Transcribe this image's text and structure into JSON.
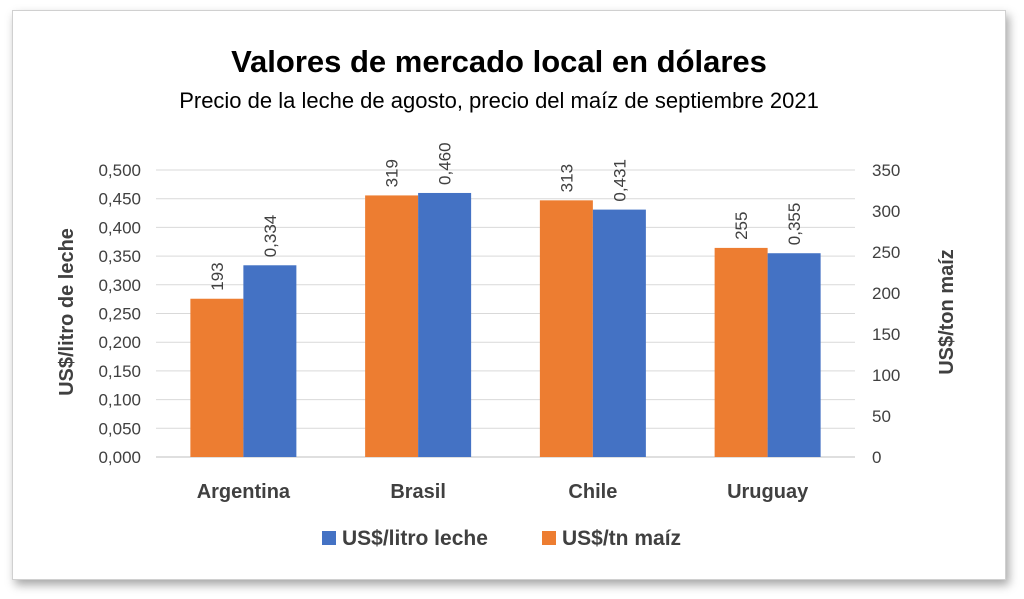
{
  "chart_data": {
    "type": "bar",
    "title": "Valores de mercado local en dólares",
    "subtitle": "Precio de la leche de agosto, precio del maíz de septiembre 2021",
    "categories": [
      "Argentina",
      "Brasil",
      "Chile",
      "Uruguay"
    ],
    "series": [
      {
        "name": "US$/litro leche",
        "axis": "left",
        "color": "#4472C4",
        "values": [
          0.334,
          0.46,
          0.431,
          0.355
        ],
        "labels": [
          "0,334",
          "0,460",
          "0,431",
          "0,355"
        ]
      },
      {
        "name": "US$/tn maíz",
        "axis": "right",
        "color": "#ED7D31",
        "values": [
          193,
          319,
          313,
          255
        ],
        "labels": [
          "193",
          "319",
          "313",
          "255"
        ]
      }
    ],
    "ylabel": "US$/litro de leche",
    "y2label": "US$/ton maíz",
    "ylim": [
      0,
      0.5
    ],
    "y2lim": [
      0,
      350
    ],
    "yticks": [
      "0,000",
      "0,050",
      "0,100",
      "0,150",
      "0,200",
      "0,250",
      "0,300",
      "0,350",
      "0,400",
      "0,450",
      "0,500"
    ],
    "y2ticks": [
      "0",
      "50",
      "100",
      "150",
      "200",
      "250",
      "300",
      "350"
    ],
    "legend_position": "bottom",
    "grid": true
  }
}
